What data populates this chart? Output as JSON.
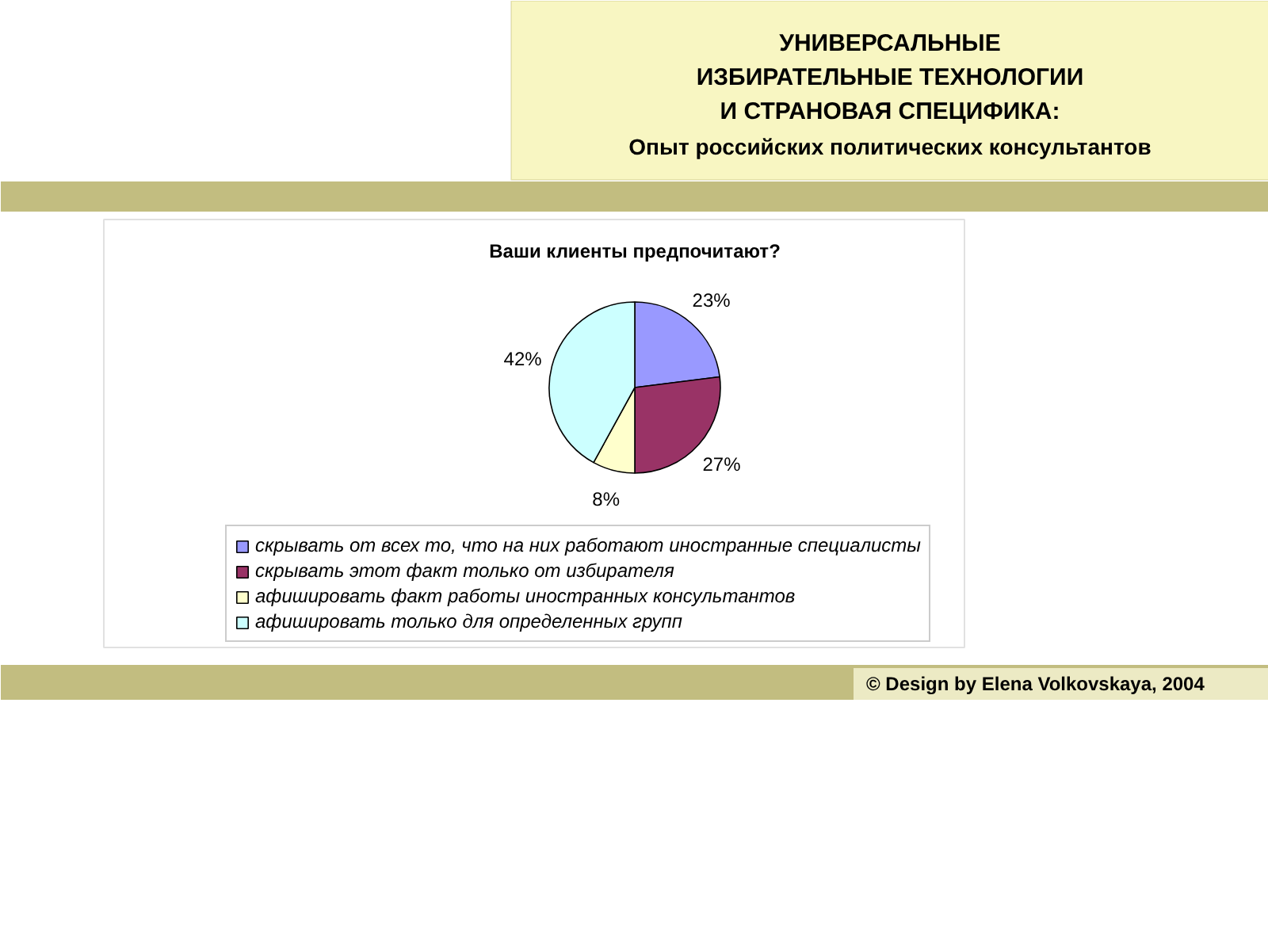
{
  "chart_data": {
    "type": "pie",
    "title": "Ваши клиенты предпочитают?",
    "categories": [
      "скрывать от всех то, что на них работают иностранные специалисты",
      "скрывать этот факт только от избирателя",
      "афишировать факт работы иностранных консультантов",
      "афишировать только для определенных групп"
    ],
    "values": [
      23,
      27,
      8,
      42
    ],
    "colors": [
      "#9999ff",
      "#993366",
      "#ffffcc",
      "#ccffff"
    ],
    "value_labels": [
      "23%",
      "27%",
      "8%",
      "42%"
    ],
    "legend": "bottom",
    "annotations": [
      "УНИВЕРСАЛЬНЫЕ ИЗБИРАТЕЛЬНЫЕ ТЕХНОЛОГИИ И СТРАНОВАЯ СПЕЦИФИКА:",
      "Опыт российских политических консультантов",
      "© Design by Elena Volkovskaya, 2004"
    ]
  }
}
